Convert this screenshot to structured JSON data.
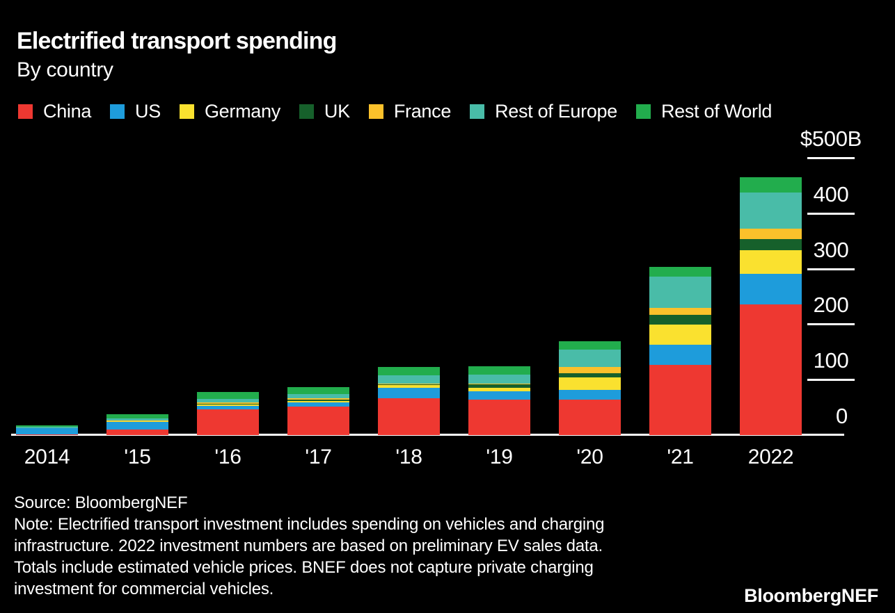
{
  "title": "Electrified transport spending",
  "subtitle": "By country",
  "footer": {
    "source": "Source: BloombergNEF",
    "note_lines": [
      "Note: Electrified transport investment includes spending on vehicles and charging",
      "infrastructure. 2022 investment numbers are based on preliminary EV sales data.",
      "Totals include estimated vehicle prices. BNEF does not capture private charging",
      "investment for commercial vehicles."
    ]
  },
  "logo": "BloombergNEF",
  "colors": {
    "background": "#000000",
    "text": "#ffffff",
    "axis": "#ffffff"
  },
  "chart_data": {
    "type": "bar",
    "stacked": true,
    "title": "Electrified transport spending",
    "subtitle": "By country",
    "unit": "billion USD",
    "ylabel": "",
    "xlabel": "",
    "ylim": [
      0,
      500
    ],
    "ytick_top_label": "$500B",
    "yticks": [
      {
        "value": 500,
        "label": "$500B"
      },
      {
        "value": 400,
        "label": "400"
      },
      {
        "value": 300,
        "label": "300"
      },
      {
        "value": 200,
        "label": "200"
      },
      {
        "value": 100,
        "label": "100"
      },
      {
        "value": 0,
        "label": "0"
      }
    ],
    "grid": false,
    "legend_position": "top",
    "x": [
      "2014",
      "'15",
      "'16",
      "'17",
      "'18",
      "'19",
      "'20",
      "'21",
      "2022"
    ],
    "series": [
      {
        "name": "China",
        "color": "#EE3831",
        "values": [
          1.5,
          10,
          46,
          51,
          66,
          64,
          64,
          126,
          236
        ]
      },
      {
        "name": "US",
        "color": "#1E9CDB",
        "values": [
          10.5,
          13.5,
          7,
          8,
          19,
          15.5,
          17.5,
          37.5,
          55
        ]
      },
      {
        "name": "Germany",
        "color": "#FAE12F",
        "values": [
          0.5,
          1,
          2,
          2.5,
          5,
          5.5,
          23,
          35.5,
          43
        ]
      },
      {
        "name": "UK",
        "color": "#16602B",
        "values": [
          0.3,
          0.5,
          1.5,
          2,
          1.5,
          6,
          6.5,
          17.5,
          19
        ]
      },
      {
        "name": "France",
        "color": "#FBC12B",
        "values": [
          0.4,
          1,
          2,
          2.5,
          1.5,
          1.5,
          11.5,
          12.5,
          19
        ]
      },
      {
        "name": "Rest of Europe",
        "color": "#49BCA8",
        "values": [
          1.5,
          4,
          7,
          8,
          15,
          17,
          32,
          56.5,
          65
        ]
      },
      {
        "name": "Rest of World",
        "color": "#22AD4D",
        "values": [
          2.5,
          8,
          12,
          12.5,
          15,
          14.5,
          14.5,
          18,
          28
        ]
      }
    ],
    "totals": [
      17.2,
      38,
      77.5,
      86.5,
      123,
      124,
      169,
      303.5,
      465
    ]
  }
}
